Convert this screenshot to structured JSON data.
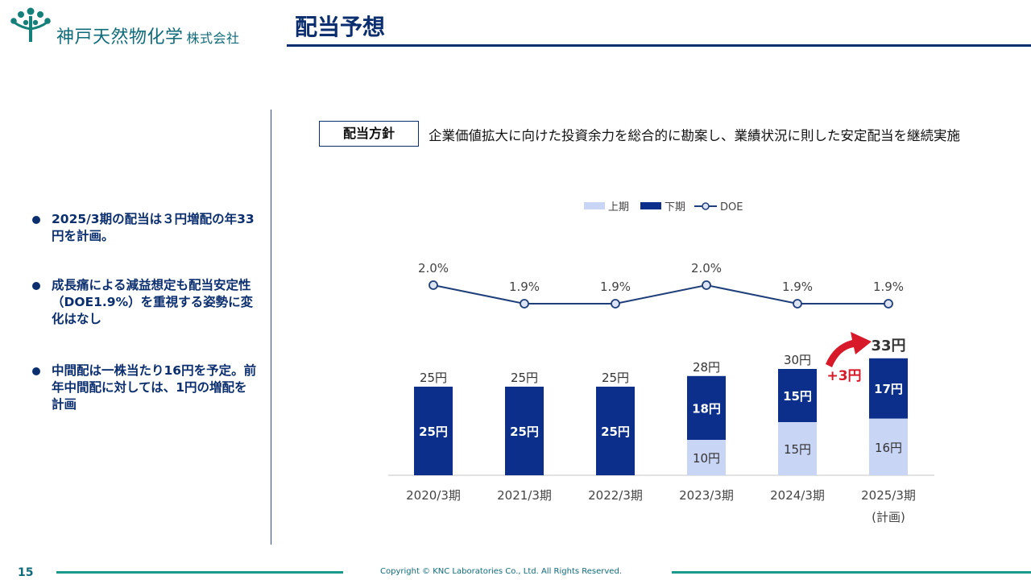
{
  "header": {
    "company_name": "神戸天然物化学",
    "company_suffix": "株式会社",
    "page_title": "配当予想"
  },
  "bullets": [
    "2025/3期の配当は３円増配の年33円を計画。",
    "成長痛による減益想定も配当安定性（DOE1.9%）を重視する姿勢に変化はなし",
    "中間配は一株当たり16円を予定。前年中間配に対しては、1円の増配を計画"
  ],
  "policy": {
    "label": "配当方針",
    "text": "企業価値拡大に向けた投資余力を総合的に勘案し、業績状況に則した安定配当を継続実施"
  },
  "colors": {
    "first_half": "#c9d5f5",
    "second_half": "#0b2f8a",
    "doe_line": "#1f3f7a",
    "accent_red": "#d8192a",
    "teal": "#0f6b7a"
  },
  "chart_data": {
    "type": "bar",
    "stacked": true,
    "categories": [
      "2020/3期",
      "2021/3期",
      "2022/3期",
      "2023/3期",
      "2024/3期",
      "2025/3期"
    ],
    "category_notes": [
      "",
      "",
      "",
      "",
      "",
      "(計画)"
    ],
    "legend": [
      "上期",
      "下期",
      "DOE"
    ],
    "legend_placement": "top-center",
    "series": [
      {
        "name": "上期",
        "values": [
          0,
          0,
          0,
          10,
          15,
          16
        ],
        "labels": [
          "",
          "",
          "",
          "10円",
          "15円",
          "16円"
        ]
      },
      {
        "name": "下期",
        "values": [
          25,
          25,
          25,
          18,
          15,
          17
        ],
        "labels": [
          "25円",
          "25円",
          "25円",
          "18円",
          "15円",
          "17円"
        ]
      }
    ],
    "totals": [
      25,
      25,
      25,
      28,
      30,
      33
    ],
    "total_labels": [
      "25円",
      "25円",
      "25円",
      "28円",
      "30円",
      "33円"
    ],
    "doe": {
      "name": "DOE",
      "values": [
        2.0,
        1.9,
        1.9,
        2.0,
        1.9,
        1.9
      ],
      "labels": [
        "2.0%",
        "1.9%",
        "1.9%",
        "2.0%",
        "1.9%",
        "1.9%"
      ]
    },
    "annotation": "+3円",
    "grid": false
  },
  "footer": {
    "page_number": "15",
    "copyright": "Copyright © KNC Laboratories Co., Ltd. All Rights Reserved."
  }
}
